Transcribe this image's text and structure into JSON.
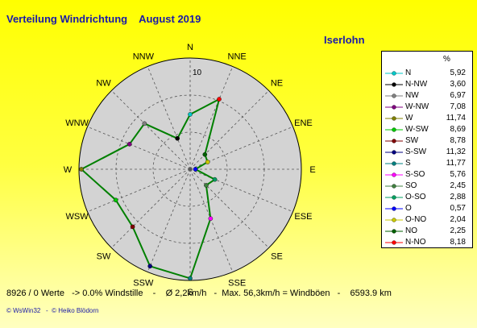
{
  "header": {
    "title": "Verteilung Windrichtung    August 2019",
    "location": "Iserlohn"
  },
  "legend": {
    "unit": "%"
  },
  "footer": {
    "stats": "8926 / 0 Werte   -> 0.0% Windstille    -    Ø 2,2km/h   -  Max. 56,3km/h = Windböen   -    6593.9 km",
    "copyright": "© WsWin32   -  © Heiko Blödorn"
  },
  "chart_data": {
    "type": "radar",
    "title": "Verteilung Windrichtung    August 2019",
    "unit": "%",
    "radial_max": 12,
    "radial_tick_label": "10",
    "radial_tick_value": 10,
    "grid": true,
    "compass_labels": [
      "N",
      "NNE",
      "NE",
      "ENE",
      "E",
      "ESE",
      "SE",
      "SSE",
      "S",
      "SSW",
      "SW",
      "WSW",
      "W",
      "WNW",
      "NW",
      "NNW"
    ],
    "entries": [
      {
        "label": "N",
        "direction": "N",
        "value": 5.92,
        "display": "5,92",
        "color": "#00c8c8"
      },
      {
        "label": "N-NW",
        "direction": "NNW",
        "value": 3.6,
        "display": "3,60",
        "color": "#000000"
      },
      {
        "label": "NW",
        "direction": "NW",
        "value": 6.97,
        "display": "6,97",
        "color": "#808080"
      },
      {
        "label": "W-NW",
        "direction": "WNW",
        "value": 7.08,
        "display": "7,08",
        "color": "#800080"
      },
      {
        "label": "W",
        "direction": "W",
        "value": 11.74,
        "display": "11,74",
        "color": "#808000"
      },
      {
        "label": "W-SW",
        "direction": "WSW",
        "value": 8.69,
        "display": "8,69",
        "color": "#00c800"
      },
      {
        "label": "SW",
        "direction": "SW",
        "value": 8.78,
        "display": "8,78",
        "color": "#800000"
      },
      {
        "label": "S-SW",
        "direction": "SSW",
        "value": 11.32,
        "display": "11,32",
        "color": "#000080"
      },
      {
        "label": "S",
        "direction": "S",
        "value": 11.77,
        "display": "11,77",
        "color": "#008080"
      },
      {
        "label": "S-SO",
        "direction": "SSE",
        "value": 5.76,
        "display": "5,76",
        "color": "#ff00ff"
      },
      {
        "label": "SO",
        "direction": "SE",
        "value": 2.45,
        "display": "2,45",
        "color": "#408040"
      },
      {
        "label": "O-SO",
        "direction": "ESE",
        "value": 2.88,
        "display": "2,88",
        "color": "#00a060"
      },
      {
        "label": "O",
        "direction": "E",
        "value": 0.57,
        "display": "0,57",
        "color": "#0000ff"
      },
      {
        "label": "O-NO",
        "direction": "ENE",
        "value": 2.04,
        "display": "2,04",
        "color": "#c8c800"
      },
      {
        "label": "NO",
        "direction": "NE",
        "value": 2.25,
        "display": "2,25",
        "color": "#006000"
      },
      {
        "label": "N-NO",
        "direction": "NNE",
        "value": 8.18,
        "display": "8,18",
        "color": "#ff0000"
      }
    ],
    "line_color": "#008000",
    "background_color": "#d3d3d3"
  }
}
